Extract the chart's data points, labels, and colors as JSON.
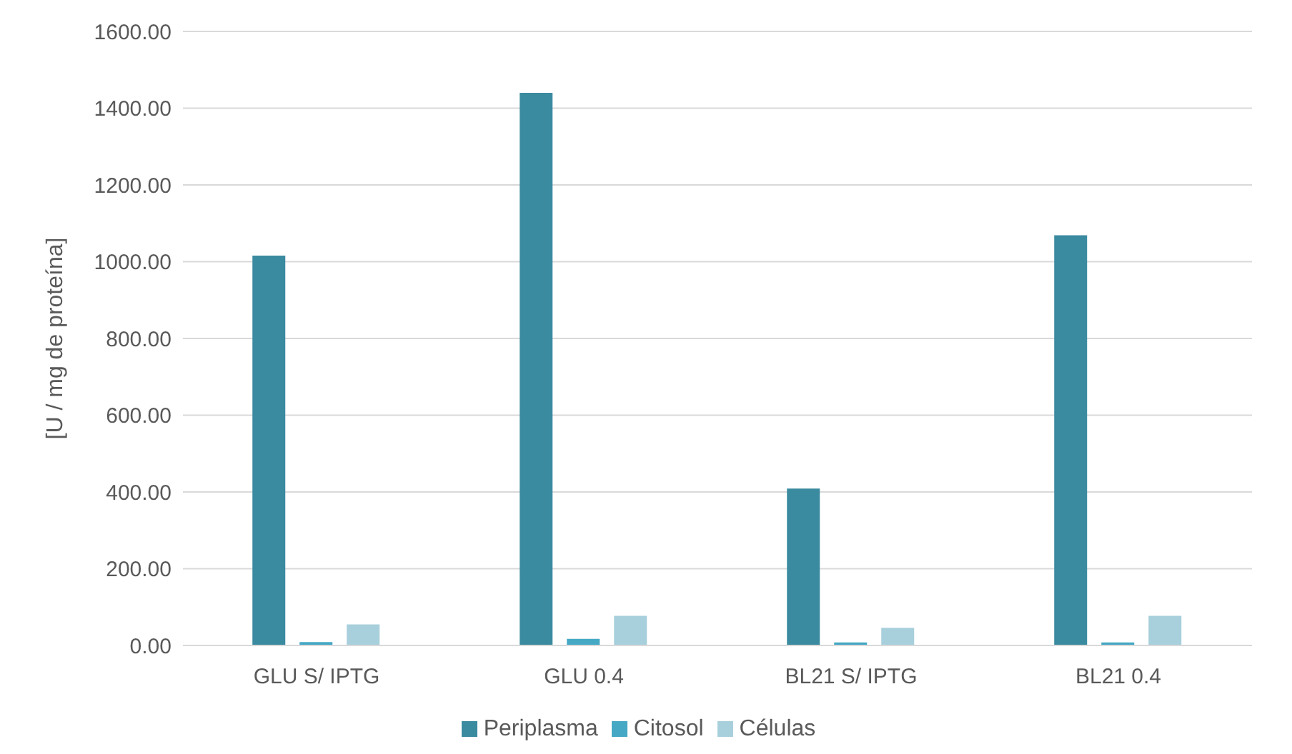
{
  "chart_data": {
    "type": "bar",
    "ylabel": "[U / mg de proteína]",
    "categories": [
      "GLU S/ IPTG",
      "GLU 0.4",
      "BL21 S/ IPTG",
      "BL21 0.4"
    ],
    "series": [
      {
        "name": "Periplasma",
        "color": "#3a8aa0",
        "values": [
          1016,
          1440,
          409,
          1069
        ]
      },
      {
        "name": "Citosol",
        "color": "#45a8c4",
        "values": [
          9,
          17,
          8,
          8
        ]
      },
      {
        "name": "Células",
        "color": "#a8cfdc",
        "values": [
          55,
          77,
          46,
          77
        ]
      }
    ],
    "ylim": [
      0,
      1600
    ],
    "yticks": [
      {
        "value": 0,
        "label": "0.00"
      },
      {
        "value": 200,
        "label": "200.00"
      },
      {
        "value": 400,
        "label": "400.00"
      },
      {
        "value": 600,
        "label": "600.00"
      },
      {
        "value": 800,
        "label": "800.00"
      },
      {
        "value": 1000,
        "label": "1000.00"
      },
      {
        "value": 1200,
        "label": "1200.00"
      },
      {
        "value": 1400,
        "label": "1400.00"
      },
      {
        "value": 1600,
        "label": "1600.00"
      }
    ],
    "grid": "y",
    "legend": "bottom"
  }
}
